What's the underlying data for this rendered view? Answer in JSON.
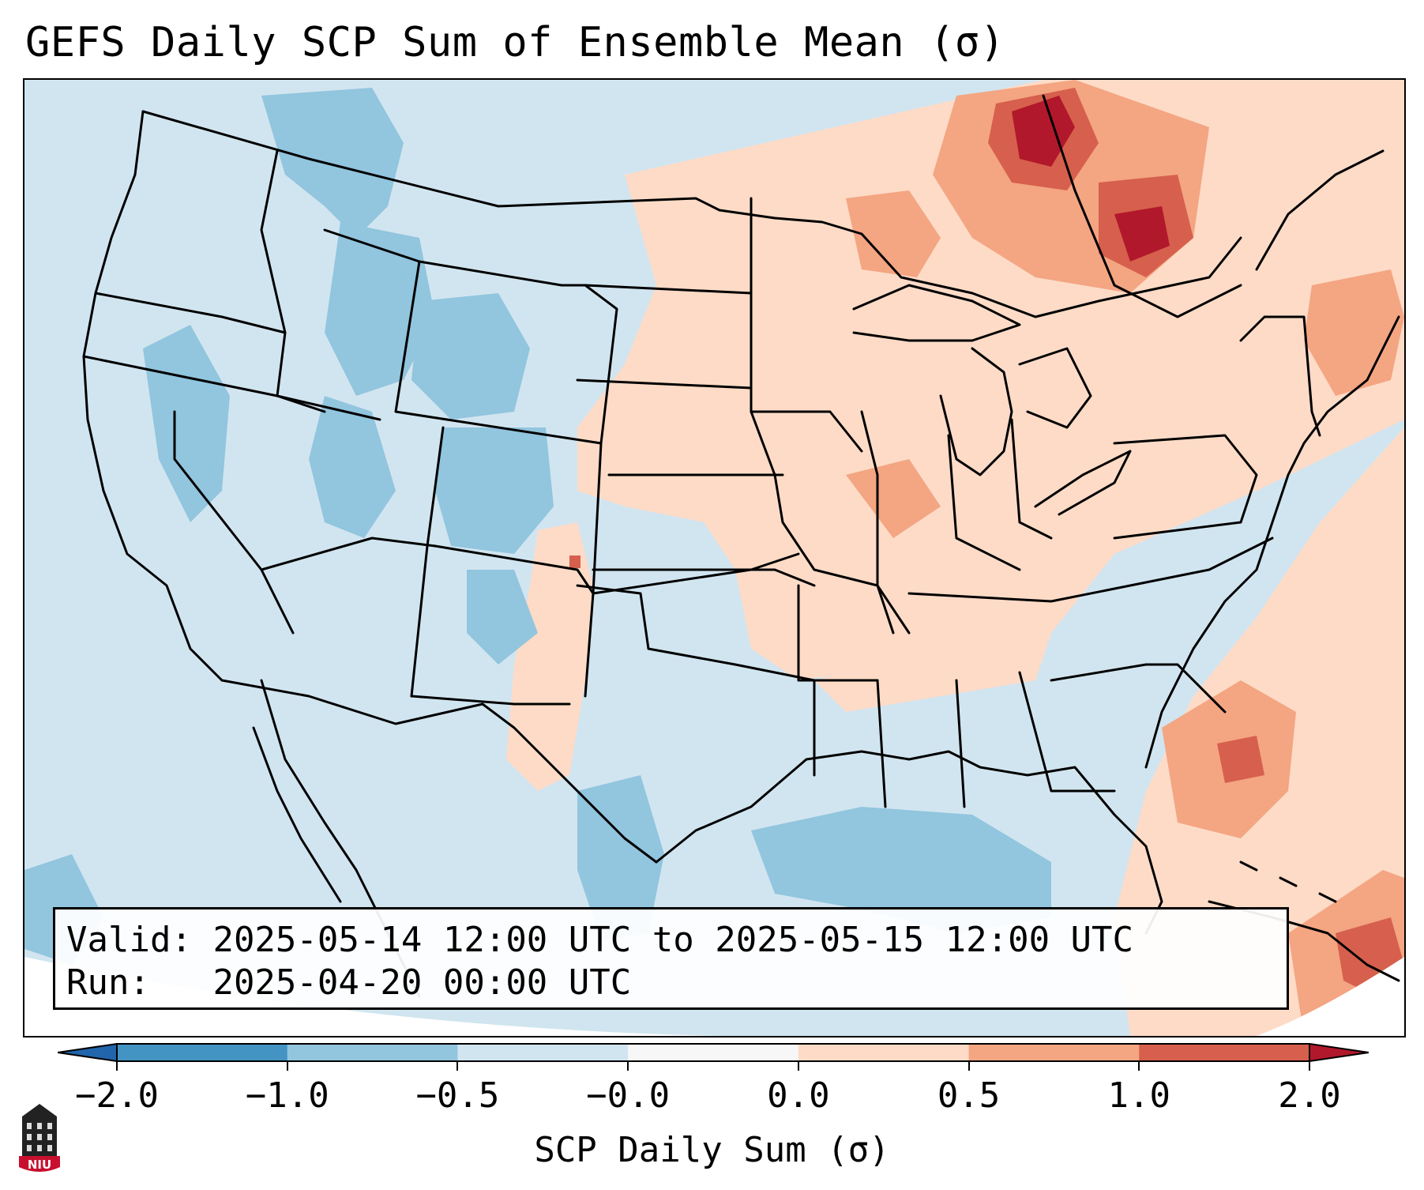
{
  "title": "GEFS Daily SCP Sum of Ensemble Mean (σ)",
  "info": {
    "valid_label": "Valid:",
    "valid_value": "2025-05-14 12:00 UTC to 2025-05-15 12:00 UTC",
    "run_label": "Run:",
    "run_value": "2025-04-20 00:00 UTC"
  },
  "colorbar": {
    "label": "SCP Daily Sum (σ)",
    "ticks": [
      "−2.0",
      "−1.0",
      "−0.5",
      "−0.0",
      "0.0",
      "0.5",
      "1.0",
      "2.0"
    ],
    "colors": [
      "#4393c3",
      "#92c5de",
      "#d1e5f0",
      "#f7f7f7",
      "#fddbc7",
      "#f4a582",
      "#d6604d"
    ],
    "extend_low_color": "#2166ac",
    "extend_high_color": "#b2182b"
  },
  "map": {
    "projection": "Lambert conformal, contiguous United States",
    "background_color": "#d1e5f0",
    "outside_domain_color": "#ffffff"
  },
  "logo": {
    "text": "NIU"
  }
}
